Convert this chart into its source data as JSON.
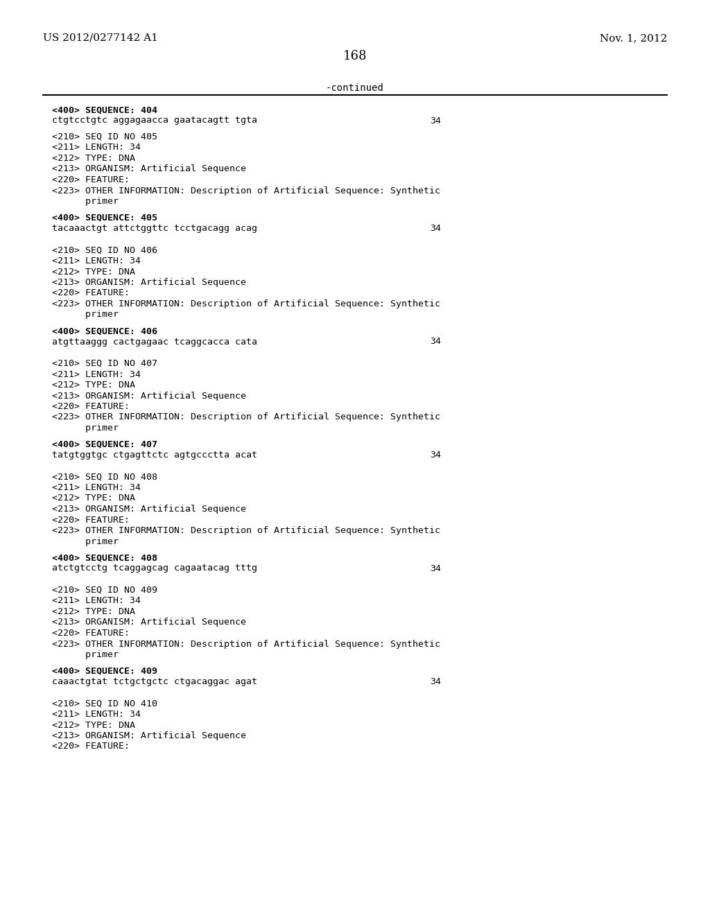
{
  "header_left": "US 2012/0277142 A1",
  "header_right": "Nov. 1, 2012",
  "page_number": "168",
  "continued_text": "-continued",
  "background_color": "#ffffff",
  "text_color": "#000000",
  "content": [
    {
      "type": "seq400",
      "text": "<400> SEQUENCE: 404"
    },
    {
      "type": "seq_data",
      "text": "ctgtcctgtc aggagaacca gaatacagtt tgta",
      "num": "34"
    },
    {
      "type": "blank"
    },
    {
      "type": "seq210",
      "text": "<210> SEQ ID NO 405"
    },
    {
      "type": "seq_meta",
      "text": "<211> LENGTH: 34"
    },
    {
      "type": "seq_meta",
      "text": "<212> TYPE: DNA"
    },
    {
      "type": "seq_meta",
      "text": "<213> ORGANISM: Artificial Sequence"
    },
    {
      "type": "seq_meta",
      "text": "<220> FEATURE:"
    },
    {
      "type": "seq_meta_long",
      "text": "<223> OTHER INFORMATION: Description of Artificial Sequence: Synthetic"
    },
    {
      "type": "seq_meta_indent",
      "text": "      primer"
    },
    {
      "type": "blank"
    },
    {
      "type": "seq400",
      "text": "<400> SEQUENCE: 405"
    },
    {
      "type": "seq_data",
      "text": "tacaaactgt attctggttc tcctgacagg acag",
      "num": "34"
    },
    {
      "type": "blank"
    },
    {
      "type": "blank"
    },
    {
      "type": "seq210",
      "text": "<210> SEQ ID NO 406"
    },
    {
      "type": "seq_meta",
      "text": "<211> LENGTH: 34"
    },
    {
      "type": "seq_meta",
      "text": "<212> TYPE: DNA"
    },
    {
      "type": "seq_meta",
      "text": "<213> ORGANISM: Artificial Sequence"
    },
    {
      "type": "seq_meta",
      "text": "<220> FEATURE:"
    },
    {
      "type": "seq_meta_long",
      "text": "<223> OTHER INFORMATION: Description of Artificial Sequence: Synthetic"
    },
    {
      "type": "seq_meta_indent",
      "text": "      primer"
    },
    {
      "type": "blank"
    },
    {
      "type": "seq400",
      "text": "<400> SEQUENCE: 406"
    },
    {
      "type": "seq_data",
      "text": "atgttaaggg cactgagaac tcaggcacca cata",
      "num": "34"
    },
    {
      "type": "blank"
    },
    {
      "type": "blank"
    },
    {
      "type": "seq210",
      "text": "<210> SEQ ID NO 407"
    },
    {
      "type": "seq_meta",
      "text": "<211> LENGTH: 34"
    },
    {
      "type": "seq_meta",
      "text": "<212> TYPE: DNA"
    },
    {
      "type": "seq_meta",
      "text": "<213> ORGANISM: Artificial Sequence"
    },
    {
      "type": "seq_meta",
      "text": "<220> FEATURE:"
    },
    {
      "type": "seq_meta_long",
      "text": "<223> OTHER INFORMATION: Description of Artificial Sequence: Synthetic"
    },
    {
      "type": "seq_meta_indent",
      "text": "      primer"
    },
    {
      "type": "blank"
    },
    {
      "type": "seq400",
      "text": "<400> SEQUENCE: 407"
    },
    {
      "type": "seq_data",
      "text": "tatgtggtgc ctgagttctc agtgccctta acat",
      "num": "34"
    },
    {
      "type": "blank"
    },
    {
      "type": "blank"
    },
    {
      "type": "seq210",
      "text": "<210> SEQ ID NO 408"
    },
    {
      "type": "seq_meta",
      "text": "<211> LENGTH: 34"
    },
    {
      "type": "seq_meta",
      "text": "<212> TYPE: DNA"
    },
    {
      "type": "seq_meta",
      "text": "<213> ORGANISM: Artificial Sequence"
    },
    {
      "type": "seq_meta",
      "text": "<220> FEATURE:"
    },
    {
      "type": "seq_meta_long",
      "text": "<223> OTHER INFORMATION: Description of Artificial Sequence: Synthetic"
    },
    {
      "type": "seq_meta_indent",
      "text": "      primer"
    },
    {
      "type": "blank"
    },
    {
      "type": "seq400",
      "text": "<400> SEQUENCE: 408"
    },
    {
      "type": "seq_data",
      "text": "atctgtcctg tcaggagcag cagaatacag tttg",
      "num": "34"
    },
    {
      "type": "blank"
    },
    {
      "type": "blank"
    },
    {
      "type": "seq210",
      "text": "<210> SEQ ID NO 409"
    },
    {
      "type": "seq_meta",
      "text": "<211> LENGTH: 34"
    },
    {
      "type": "seq_meta",
      "text": "<212> TYPE: DNA"
    },
    {
      "type": "seq_meta",
      "text": "<213> ORGANISM: Artificial Sequence"
    },
    {
      "type": "seq_meta",
      "text": "<220> FEATURE:"
    },
    {
      "type": "seq_meta_long",
      "text": "<223> OTHER INFORMATION: Description of Artificial Sequence: Synthetic"
    },
    {
      "type": "seq_meta_indent",
      "text": "      primer"
    },
    {
      "type": "blank"
    },
    {
      "type": "seq400",
      "text": "<400> SEQUENCE: 409"
    },
    {
      "type": "seq_data",
      "text": "caaactgtat tctgctgctc ctgacaggac agat",
      "num": "34"
    },
    {
      "type": "blank"
    },
    {
      "type": "blank"
    },
    {
      "type": "seq210",
      "text": "<210> SEQ ID NO 410"
    },
    {
      "type": "seq_meta",
      "text": "<211> LENGTH: 34"
    },
    {
      "type": "seq_meta",
      "text": "<212> TYPE: DNA"
    },
    {
      "type": "seq_meta",
      "text": "<213> ORGANISM: Artificial Sequence"
    },
    {
      "type": "seq_meta",
      "text": "<220> FEATURE:"
    }
  ]
}
